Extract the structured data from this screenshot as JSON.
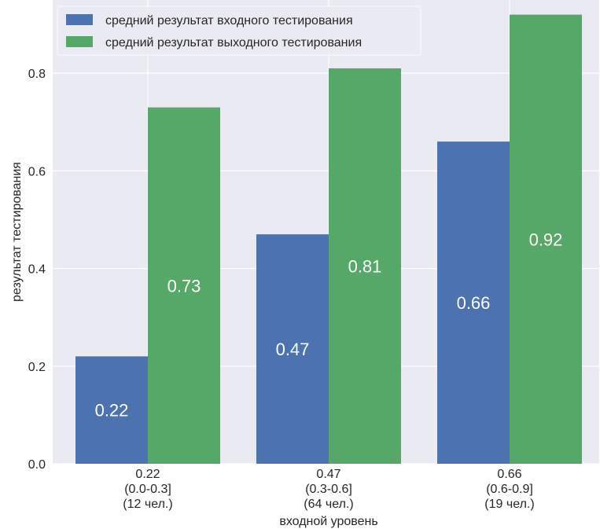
{
  "chart_data": {
    "type": "bar",
    "title": "",
    "xlabel": "входной уровень",
    "ylabel": "результат тестирования",
    "categories": [
      [
        "0.22",
        "(0.0-0.3]",
        "(12 чел.)"
      ],
      [
        "0.47",
        "(0.3-0.6]",
        "(64 чел.)"
      ],
      [
        "0.66",
        "(0.6-0.9]",
        "(19 чел.)"
      ]
    ],
    "series": [
      {
        "name": "средний результат входного тестирования",
        "values": [
          0.22,
          0.47,
          0.66
        ],
        "labels": [
          "0.22",
          "0.47",
          "0.66"
        ],
        "color": "#4c72b0"
      },
      {
        "name": "средний результат выходного тестирования",
        "values": [
          0.73,
          0.81,
          0.92
        ],
        "labels": [
          "0.73",
          "0.81",
          "0.92"
        ],
        "color": "#55a868"
      }
    ],
    "yticks": [
      "0.0",
      "0.2",
      "0.4",
      "0.6",
      "0.8"
    ],
    "ylim": [
      0,
      0.95
    ],
    "grid": true,
    "legend_position": "top-left",
    "plot_background": "#eaeaf2"
  }
}
